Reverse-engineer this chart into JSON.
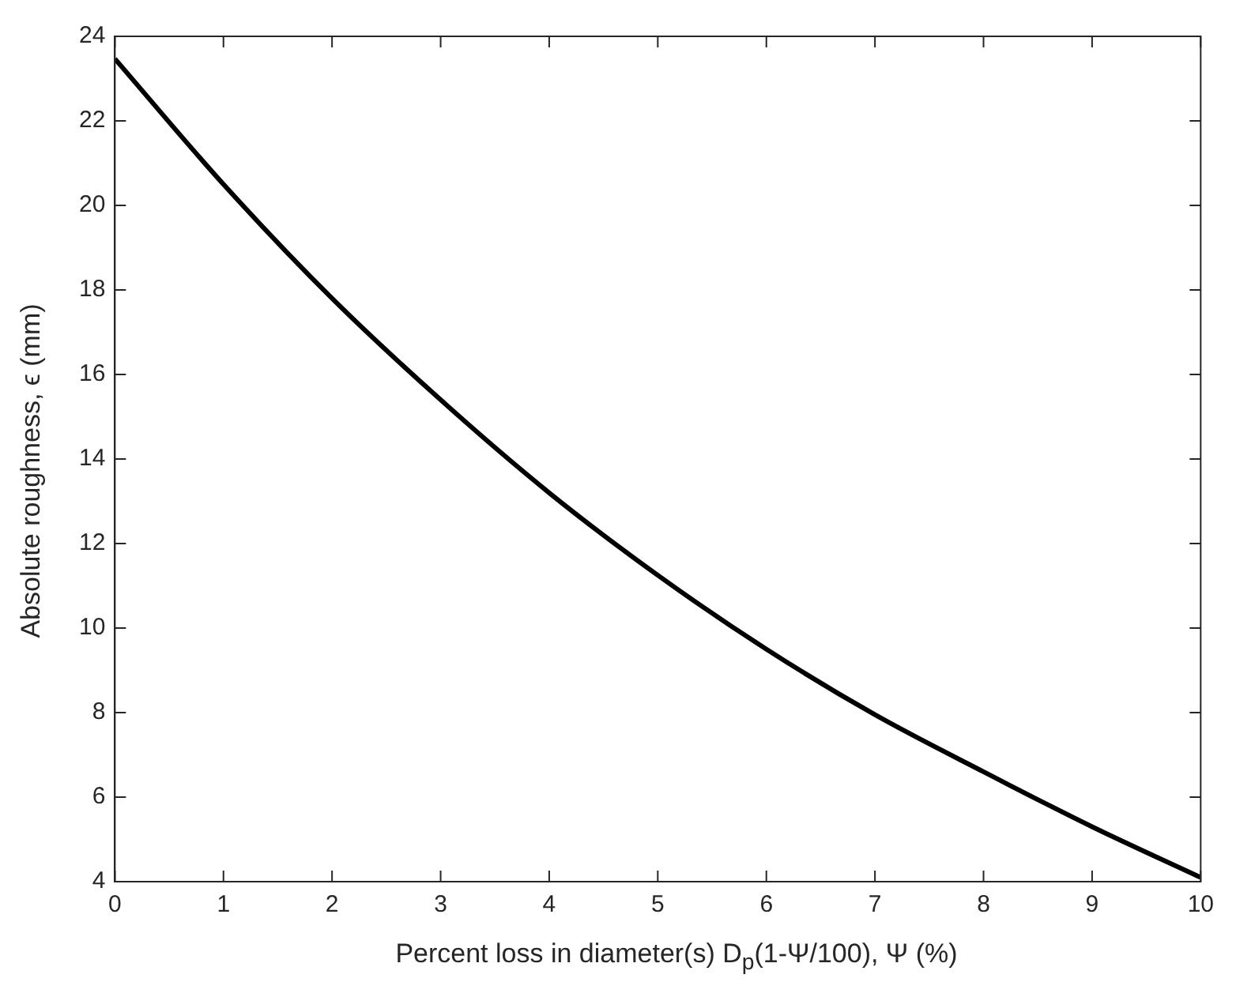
{
  "chart_data": {
    "type": "line",
    "xlabel": "Percent loss in diameter(s) D$_{p}$(1-Ψ/100), Ψ (%)",
    "ylabel": "Absolute roughness, ϵ (mm)",
    "x": [
      0,
      1,
      2,
      3,
      4,
      5,
      6,
      7,
      8,
      9,
      10
    ],
    "series": [
      {
        "color": "#000000",
        "values": [
          23.47,
          20.5,
          17.8,
          15.4,
          13.2,
          11.25,
          9.5,
          7.95,
          6.6,
          5.3,
          4.1
        ]
      }
    ],
    "xlim": [
      0,
      10
    ],
    "xticks": [
      0,
      1,
      2,
      3,
      4,
      5,
      6,
      7,
      8,
      9,
      10
    ],
    "ylim": [
      4,
      24
    ],
    "yticks": [
      4,
      6,
      8,
      10,
      12,
      14,
      16,
      18,
      20,
      22,
      24
    ],
    "grid": false,
    "legend": false,
    "marker": "none",
    "line_style": "solid"
  }
}
